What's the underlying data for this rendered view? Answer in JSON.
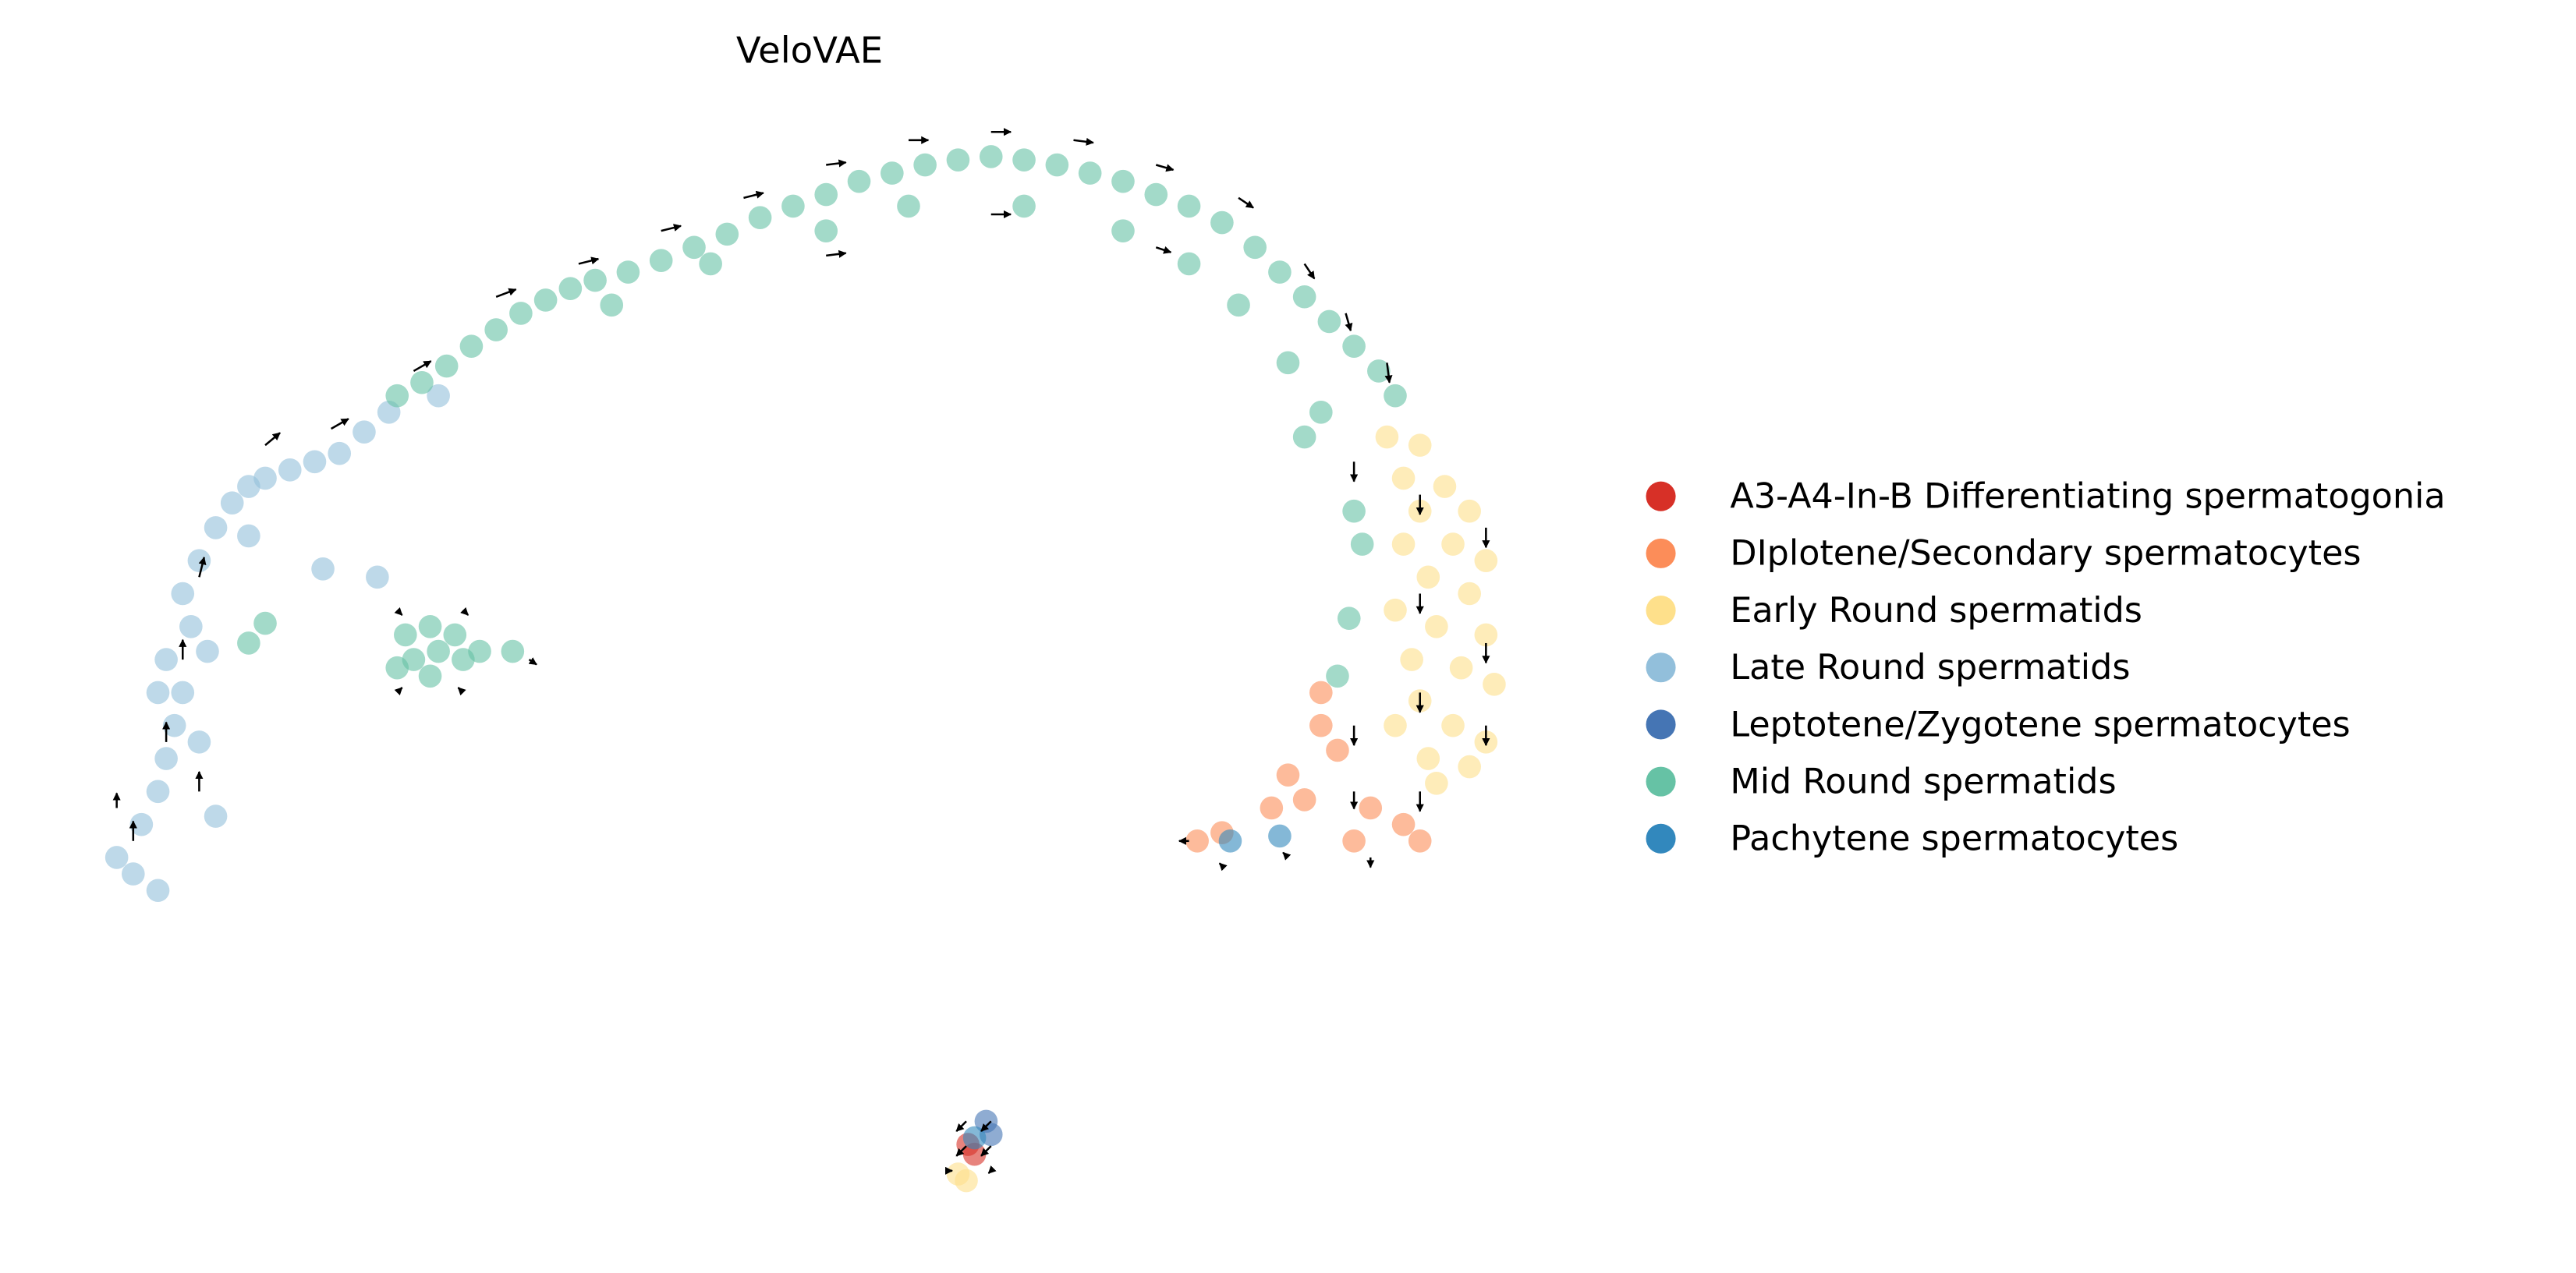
{
  "chart_data": {
    "type": "scatter",
    "title": "VeloVAE",
    "xlabel": "",
    "ylabel": "",
    "grid": false,
    "axes_visible": false,
    "legend_placement": "right",
    "xlim": [
      -16,
      3
    ],
    "ylim": [
      -7.4,
      7.7
    ],
    "series": [
      {
        "name": "A3-A4-In-B Differentiating spermatogonia",
        "color": "#d73027",
        "points": [
          [
            -4.28,
            -5.88
          ],
          [
            -4.2,
            -6.0
          ]
        ]
      },
      {
        "name": "DIplotene/Secondary spermatocytes",
        "color": "#fc8d59",
        "points": [
          [
            0,
            -0.8
          ],
          [
            -0.4,
            -1.4
          ],
          [
            -0.6,
            -1.8
          ],
          [
            -1.2,
            -2.1
          ],
          [
            0.6,
            -1.8
          ],
          [
            1.0,
            -2.0
          ],
          [
            0.4,
            -2.2
          ],
          [
            0.2,
            -1.1
          ],
          [
            -1.5,
            -2.2
          ],
          [
            0,
            -0.4
          ],
          [
            1.2,
            -2.2
          ],
          [
            -0.2,
            -1.7
          ]
        ]
      },
      {
        "name": "Early Round spermatids",
        "color": "#fee08b",
        "points": [
          [
            0.8,
            2.7
          ],
          [
            1.2,
            2.6
          ],
          [
            1.0,
            2.2
          ],
          [
            1.5,
            2.1
          ],
          [
            1.2,
            1.8
          ],
          [
            1.8,
            1.8
          ],
          [
            1.0,
            1.4
          ],
          [
            1.6,
            1.4
          ],
          [
            2.0,
            1.2
          ],
          [
            1.3,
            1.0
          ],
          [
            1.8,
            0.8
          ],
          [
            0.9,
            0.6
          ],
          [
            1.4,
            0.4
          ],
          [
            2.0,
            0.3
          ],
          [
            1.1,
            0.0
          ],
          [
            1.7,
            -0.1
          ],
          [
            2.1,
            -0.3
          ],
          [
            1.2,
            -0.5
          ],
          [
            1.6,
            -0.8
          ],
          [
            2.0,
            -1.0
          ],
          [
            1.3,
            -1.2
          ],
          [
            1.8,
            -1.3
          ],
          [
            0.9,
            -0.8
          ],
          [
            1.4,
            -1.5
          ],
          [
            -4.4,
            -6.24
          ],
          [
            -4.3,
            -6.32
          ]
        ]
      },
      {
        "name": "Late Round spermatids",
        "color": "#92bfdb",
        "points": [
          [
            -14.4,
            -2.6
          ],
          [
            -14.6,
            -2.4
          ],
          [
            -14.1,
            -2.8
          ],
          [
            -14.3,
            -2.0
          ],
          [
            -14.1,
            -1.6
          ],
          [
            -14.0,
            -1.2
          ],
          [
            -13.9,
            -0.8
          ],
          [
            -13.8,
            -0.4
          ],
          [
            -14.0,
            0.0
          ],
          [
            -13.7,
            0.4
          ],
          [
            -13.8,
            0.8
          ],
          [
            -13.6,
            1.2
          ],
          [
            -13.4,
            1.6
          ],
          [
            -13.2,
            1.9
          ],
          [
            -13.0,
            2.1
          ],
          [
            -12.8,
            2.2
          ],
          [
            -12.5,
            2.3
          ],
          [
            -12.2,
            2.4
          ],
          [
            -11.9,
            2.5
          ],
          [
            -11.6,
            2.76
          ],
          [
            -11.3,
            3.0
          ],
          [
            -10.7,
            3.2
          ],
          [
            -13.6,
            -1.0
          ],
          [
            -14.1,
            -0.4
          ],
          [
            -13.5,
            0.1
          ],
          [
            -13.0,
            1.5
          ],
          [
            -12.1,
            1.1
          ],
          [
            -11.44,
            1.0
          ],
          [
            -13.4,
            -1.9
          ]
        ]
      },
      {
        "name": "Leptotene/Zygotene spermatocytes",
        "color": "#4575b4",
        "points": [
          [
            -4.06,
            -5.6
          ],
          [
            -4.0,
            -5.76
          ]
        ]
      },
      {
        "name": "Mid Round spermatids",
        "color": "#66c2a5",
        "points": [
          [
            -11.2,
            3.2
          ],
          [
            -10.9,
            3.36
          ],
          [
            -10.6,
            3.56
          ],
          [
            -10.3,
            3.8
          ],
          [
            -10.0,
            4.0
          ],
          [
            -9.7,
            4.2
          ],
          [
            -9.4,
            4.36
          ],
          [
            -9.1,
            4.5
          ],
          [
            -8.8,
            4.6
          ],
          [
            -8.4,
            4.7
          ],
          [
            -8.0,
            4.84
          ],
          [
            -7.6,
            5.0
          ],
          [
            -7.2,
            5.16
          ],
          [
            -6.8,
            5.36
          ],
          [
            -6.4,
            5.5
          ],
          [
            -6.0,
            5.64
          ],
          [
            -5.6,
            5.8
          ],
          [
            -5.2,
            5.9
          ],
          [
            -4.8,
            6.0
          ],
          [
            -4.4,
            6.06
          ],
          [
            -4.0,
            6.1
          ],
          [
            -3.6,
            6.06
          ],
          [
            -3.2,
            6.0
          ],
          [
            -2.8,
            5.9
          ],
          [
            -2.4,
            5.8
          ],
          [
            -2.0,
            5.64
          ],
          [
            -1.6,
            5.5
          ],
          [
            -1.2,
            5.3
          ],
          [
            -0.8,
            5.0
          ],
          [
            -0.5,
            4.7
          ],
          [
            -0.2,
            4.4
          ],
          [
            0.1,
            4.1
          ],
          [
            0.4,
            3.8
          ],
          [
            0.7,
            3.5
          ],
          [
            0.9,
            3.2
          ],
          [
            -6.0,
            5.2
          ],
          [
            -5.0,
            5.5
          ],
          [
            -3.6,
            5.5
          ],
          [
            -2.4,
            5.2
          ],
          [
            -1.6,
            4.8
          ],
          [
            -1.0,
            4.3
          ],
          [
            -0.4,
            3.6
          ],
          [
            0.0,
            3.0
          ],
          [
            -0.2,
            2.7
          ],
          [
            0.4,
            1.8
          ],
          [
            0.5,
            1.4
          ],
          [
            0.34,
            0.5
          ],
          [
            0.2,
            -0.2
          ],
          [
            -7.4,
            4.8
          ],
          [
            -8.6,
            4.3
          ],
          [
            -11.1,
            0.3
          ],
          [
            -10.8,
            0.4
          ],
          [
            -10.5,
            0.3
          ],
          [
            -10.7,
            0.1
          ],
          [
            -11.0,
            0.0
          ],
          [
            -10.4,
            0.0
          ],
          [
            -10.8,
            -0.2
          ],
          [
            -11.2,
            -0.1
          ],
          [
            -10.2,
            0.1
          ],
          [
            -9.8,
            0.1
          ],
          [
            -12.8,
            0.44
          ],
          [
            -13.0,
            0.2
          ]
        ]
      },
      {
        "name": "Pachytene spermatocytes",
        "color": "#3288bd",
        "points": [
          [
            -1.1,
            -2.2
          ],
          [
            -0.5,
            -2.14
          ],
          [
            -4.2,
            -5.8
          ]
        ]
      }
    ],
    "velocity_arrows": [
      [
        -14.4,
        -2.2,
        0,
        0.4
      ],
      [
        -14.0,
        -1.0,
        0,
        0.4
      ],
      [
        -13.8,
        0,
        0,
        0.4
      ],
      [
        -13.6,
        1.0,
        0.1,
        0.4
      ],
      [
        -13.6,
        -1.6,
        0,
        0.4
      ],
      [
        -14.6,
        -1.8,
        0,
        0.3
      ],
      [
        -12.8,
        2.6,
        0.3,
        0.25
      ],
      [
        -12.0,
        2.8,
        0.35,
        0.2
      ],
      [
        -11.0,
        3.5,
        0.35,
        0.2
      ],
      [
        -10.0,
        4.4,
        0.4,
        0.15
      ],
      [
        -9.0,
        4.8,
        0.4,
        0.1
      ],
      [
        -8.0,
        5.2,
        0.4,
        0.1
      ],
      [
        -7.0,
        5.6,
        0.4,
        0.1
      ],
      [
        -6.0,
        6.0,
        0.4,
        0.05
      ],
      [
        -5.0,
        6.3,
        0.4,
        0
      ],
      [
        -4.0,
        6.4,
        0.4,
        0
      ],
      [
        -3.0,
        6.3,
        0.4,
        -0.05
      ],
      [
        -2.0,
        6.0,
        0.35,
        -0.1
      ],
      [
        -1.0,
        5.6,
        0.3,
        -0.2
      ],
      [
        -6.0,
        4.9,
        0.4,
        0.05
      ],
      [
        -4.0,
        5.4,
        0.4,
        0
      ],
      [
        -2.0,
        5.0,
        0.3,
        -0.1
      ],
      [
        -0.2,
        4.8,
        0.2,
        -0.3
      ],
      [
        0.3,
        4.2,
        0.1,
        -0.35
      ],
      [
        0.8,
        3.6,
        0.05,
        -0.4
      ],
      [
        0.4,
        2.4,
        0,
        -0.4
      ],
      [
        1.2,
        2.0,
        0,
        -0.4
      ],
      [
        2.0,
        1.6,
        0,
        -0.4
      ],
      [
        1.2,
        0.8,
        0,
        -0.4
      ],
      [
        2.0,
        0.2,
        0,
        -0.4
      ],
      [
        1.2,
        -0.4,
        0,
        -0.4
      ],
      [
        2.0,
        -0.8,
        0,
        -0.4
      ],
      [
        0.4,
        -0.8,
        0,
        -0.4
      ],
      [
        1.2,
        -1.6,
        0,
        -0.4
      ],
      [
        0.4,
        -1.6,
        0,
        -0.35
      ],
      [
        -0.4,
        -2.4,
        -0.1,
        0.1
      ],
      [
        0.6,
        -2.4,
        0,
        -0.2
      ],
      [
        -1.6,
        -2.2,
        -0.2,
        0
      ],
      [
        -1.2,
        -2.5,
        -0.05,
        0.05
      ],
      [
        -11.2,
        0.6,
        0.1,
        -0.1
      ],
      [
        -10.4,
        0.6,
        0.1,
        -0.1
      ],
      [
        -11.2,
        -0.4,
        0.1,
        0.1
      ],
      [
        -10.4,
        -0.4,
        -0.1,
        0.1
      ],
      [
        -9.6,
        0.0,
        0.15,
        -0.1
      ],
      [
        -4.3,
        -5.6,
        -0.2,
        -0.2
      ],
      [
        -4.0,
        -5.6,
        -0.2,
        -0.2
      ],
      [
        -4.3,
        -5.9,
        -0.2,
        -0.2
      ],
      [
        -4.0,
        -5.9,
        -0.2,
        -0.2
      ],
      [
        -4.5,
        -6.2,
        0.05,
        0
      ],
      [
        -4.0,
        -6.2,
        -0.05,
        -0.05
      ]
    ]
  }
}
